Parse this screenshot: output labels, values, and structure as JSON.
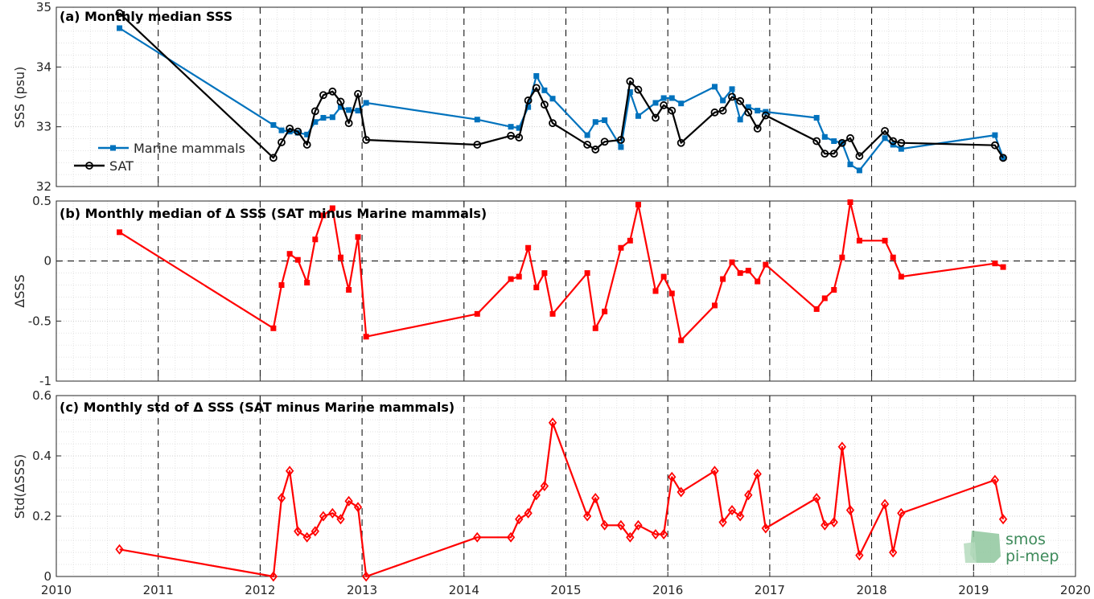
{
  "chart_data": [
    {
      "type": "line",
      "title": "(a) Monthly median SSS",
      "ylabel": "SSS (psu)",
      "xlim": [
        2010,
        2020
      ],
      "ylim": [
        32,
        35
      ],
      "yticks": [
        32,
        33,
        34,
        35
      ],
      "ytick_labels": [
        "32",
        "33",
        "34",
        "35"
      ],
      "grid": true,
      "legend_position": "bottom-left",
      "series": [
        {
          "name": "Marine mammals",
          "color": "#0072BD",
          "marker": "square",
          "x": [
            2010.62,
            2012.13,
            2012.21,
            2012.29,
            2012.37,
            2012.46,
            2012.54,
            2012.62,
            2012.71,
            2012.79,
            2012.87,
            2012.96,
            2013.04,
            2014.13,
            2014.46,
            2014.54,
            2014.63,
            2014.71,
            2014.79,
            2014.87,
            2015.21,
            2015.29,
            2015.38,
            2015.54,
            2015.63,
            2015.71,
            2015.88,
            2015.96,
            2016.04,
            2016.13,
            2016.46,
            2016.54,
            2016.63,
            2016.71,
            2016.79,
            2016.88,
            2016.96,
            2017.46,
            2017.54,
            2017.63,
            2017.71,
            2017.79,
            2017.88,
            2018.13,
            2018.21,
            2018.29,
            2019.21,
            2019.29
          ],
          "values": [
            34.65,
            33.03,
            32.94,
            32.92,
            32.9,
            32.87,
            33.08,
            33.15,
            33.16,
            33.33,
            33.28,
            33.27,
            33.4,
            33.12,
            33.0,
            32.98,
            33.33,
            33.85,
            33.61,
            33.47,
            32.86,
            33.08,
            33.11,
            32.66,
            33.58,
            33.18,
            33.4,
            33.48,
            33.48,
            33.39,
            33.67,
            33.44,
            33.63,
            33.12,
            33.33,
            33.27,
            33.25,
            33.15,
            32.83,
            32.76,
            32.73,
            32.37,
            32.27,
            32.81,
            32.7,
            32.63,
            32.86,
            32.48
          ]
        },
        {
          "name": "SAT",
          "color": "#000000",
          "marker": "circle",
          "x": [
            2010.62,
            2012.13,
            2012.21,
            2012.29,
            2012.37,
            2012.46,
            2012.54,
            2012.62,
            2012.71,
            2012.79,
            2012.87,
            2012.96,
            2013.04,
            2014.13,
            2014.46,
            2014.54,
            2014.63,
            2014.71,
            2014.79,
            2014.87,
            2015.21,
            2015.29,
            2015.38,
            2015.54,
            2015.63,
            2015.71,
            2015.88,
            2015.96,
            2016.04,
            2016.13,
            2016.46,
            2016.54,
            2016.63,
            2016.71,
            2016.79,
            2016.88,
            2016.96,
            2017.46,
            2017.54,
            2017.63,
            2017.71,
            2017.79,
            2017.88,
            2018.13,
            2018.21,
            2018.29,
            2019.21,
            2019.29
          ],
          "values": [
            34.9,
            32.48,
            32.74,
            32.97,
            32.92,
            32.7,
            33.26,
            33.53,
            33.59,
            33.42,
            33.06,
            33.55,
            32.78,
            32.7,
            32.85,
            32.82,
            33.44,
            33.65,
            33.37,
            33.06,
            32.7,
            32.62,
            32.75,
            32.78,
            33.76,
            33.62,
            33.15,
            33.36,
            33.27,
            32.73,
            33.24,
            33.27,
            33.5,
            33.43,
            33.24,
            32.97,
            33.19,
            32.76,
            32.55,
            32.55,
            32.73,
            32.81,
            32.51,
            32.93,
            32.76,
            32.73,
            32.69,
            32.48
          ]
        }
      ]
    },
    {
      "type": "line",
      "title": "(b) Monthly median of Δ SSS (SAT minus Marine mammals)",
      "ylabel": "ΔSSS",
      "xlim": [
        2010,
        2020
      ],
      "ylim": [
        -1,
        0.5
      ],
      "yticks": [
        -1,
        -0.5,
        0,
        0.5
      ],
      "ytick_labels": [
        "-1",
        "-0.5",
        "0",
        "0.5"
      ],
      "grid": true,
      "reference_line": 0,
      "series": [
        {
          "color": "#FF0000",
          "marker": "square",
          "x": [
            2010.62,
            2012.13,
            2012.21,
            2012.29,
            2012.37,
            2012.46,
            2012.54,
            2012.62,
            2012.71,
            2012.79,
            2012.87,
            2012.96,
            2013.04,
            2014.13,
            2014.46,
            2014.54,
            2014.63,
            2014.71,
            2014.79,
            2014.87,
            2015.21,
            2015.29,
            2015.38,
            2015.54,
            2015.63,
            2015.71,
            2015.88,
            2015.96,
            2016.04,
            2016.13,
            2016.46,
            2016.54,
            2016.63,
            2016.71,
            2016.79,
            2016.88,
            2016.96,
            2017.46,
            2017.54,
            2017.63,
            2017.71,
            2017.79,
            2017.88,
            2018.13,
            2018.21,
            2018.29,
            2019.21,
            2019.29
          ],
          "values": [
            0.24,
            -0.56,
            -0.2,
            0.06,
            0.01,
            -0.18,
            0.18,
            0.38,
            0.44,
            0.03,
            -0.24,
            0.2,
            -0.63,
            -0.44,
            -0.15,
            -0.13,
            0.11,
            -0.22,
            -0.1,
            -0.44,
            -0.1,
            -0.56,
            -0.42,
            0.11,
            0.17,
            0.47,
            -0.25,
            -0.13,
            -0.27,
            -0.66,
            -0.37,
            -0.15,
            -0.01,
            -0.1,
            -0.08,
            -0.17,
            -0.03,
            -0.4,
            -0.31,
            -0.24,
            0.03,
            0.49,
            0.17,
            0.17,
            0.03,
            -0.13,
            -0.02,
            -0.05
          ]
        }
      ]
    },
    {
      "type": "line",
      "title": "(c) Monthly std of Δ SSS (SAT minus Marine mammals)",
      "ylabel": "Std(ΔSSS)",
      "xlim": [
        2010,
        2020
      ],
      "ylim": [
        0,
        0.6
      ],
      "yticks": [
        0,
        0.2,
        0.4,
        0.6
      ],
      "ytick_labels": [
        "0",
        "0.2",
        "0.4",
        "0.6"
      ],
      "xticks": [
        2010,
        2011,
        2012,
        2013,
        2014,
        2015,
        2016,
        2017,
        2018,
        2019,
        2020
      ],
      "xtick_labels": [
        "2010",
        "2011",
        "2012",
        "2013",
        "2014",
        "2015",
        "2016",
        "2017",
        "2018",
        "2019",
        "2020"
      ],
      "grid": true,
      "series": [
        {
          "color": "#FF0000",
          "marker": "diamond",
          "x": [
            2010.62,
            2012.13,
            2012.21,
            2012.29,
            2012.37,
            2012.46,
            2012.54,
            2012.62,
            2012.71,
            2012.79,
            2012.87,
            2012.96,
            2013.04,
            2014.13,
            2014.46,
            2014.54,
            2014.63,
            2014.71,
            2014.79,
            2014.87,
            2015.21,
            2015.29,
            2015.38,
            2015.54,
            2015.63,
            2015.71,
            2015.88,
            2015.96,
            2016.04,
            2016.13,
            2016.46,
            2016.54,
            2016.63,
            2016.71,
            2016.79,
            2016.88,
            2016.96,
            2017.46,
            2017.54,
            2017.63,
            2017.71,
            2017.79,
            2017.88,
            2018.13,
            2018.21,
            2018.29,
            2019.21,
            2019.29
          ],
          "values": [
            0.09,
            0.0,
            0.26,
            0.35,
            0.15,
            0.13,
            0.15,
            0.2,
            0.21,
            0.19,
            0.25,
            0.23,
            0.0,
            0.13,
            0.13,
            0.19,
            0.21,
            0.27,
            0.3,
            0.51,
            0.2,
            0.26,
            0.17,
            0.17,
            0.13,
            0.17,
            0.14,
            0.14,
            0.33,
            0.28,
            0.35,
            0.18,
            0.22,
            0.2,
            0.27,
            0.34,
            0.16,
            0.26,
            0.17,
            0.18,
            0.43,
            0.22,
            0.07,
            0.24,
            0.08,
            0.21,
            0.32,
            0.19
          ]
        }
      ]
    }
  ],
  "year_boundaries": [
    2011,
    2012,
    2013,
    2014,
    2015,
    2016,
    2017,
    2018,
    2019
  ],
  "logo": {
    "line1": "smos",
    "line2": "pi-mep"
  }
}
